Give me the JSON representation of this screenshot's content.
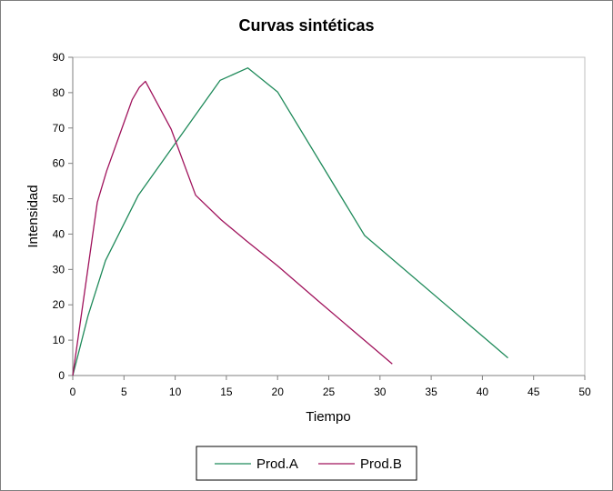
{
  "chart_data": {
    "type": "line",
    "title": "Curvas sintéticas",
    "xlabel": "Tiempo",
    "ylabel": "Intensidad",
    "xlim": [
      0,
      50
    ],
    "ylim": [
      0,
      90
    ],
    "xticks": [
      0,
      5,
      10,
      15,
      20,
      25,
      30,
      35,
      40,
      45,
      50
    ],
    "yticks": [
      0,
      10,
      20,
      30,
      40,
      50,
      60,
      70,
      80,
      90
    ],
    "grid": false,
    "legend_position": "bottom",
    "series": [
      {
        "name": "Prod.A",
        "color": "#1f8a5a",
        "points": [
          [
            0,
            0
          ],
          [
            1.5,
            17
          ],
          [
            3.2,
            32.5
          ],
          [
            6.4,
            51
          ],
          [
            14.4,
            83.5
          ],
          [
            17.1,
            87
          ],
          [
            20,
            80.2
          ],
          [
            28.5,
            39.6
          ],
          [
            42.5,
            5
          ]
        ]
      },
      {
        "name": "Prod.B",
        "color": "#a0135c",
        "points": [
          [
            0,
            0
          ],
          [
            2.4,
            49
          ],
          [
            3.3,
            57.8
          ],
          [
            5,
            71.5
          ],
          [
            5.8,
            78
          ],
          [
            6.5,
            81.5
          ],
          [
            7.1,
            83.2
          ],
          [
            9.6,
            69.7
          ],
          [
            12,
            51
          ],
          [
            14.5,
            44
          ],
          [
            17,
            38
          ],
          [
            20,
            31
          ],
          [
            24,
            21
          ],
          [
            31.2,
            3.3
          ]
        ]
      }
    ]
  }
}
